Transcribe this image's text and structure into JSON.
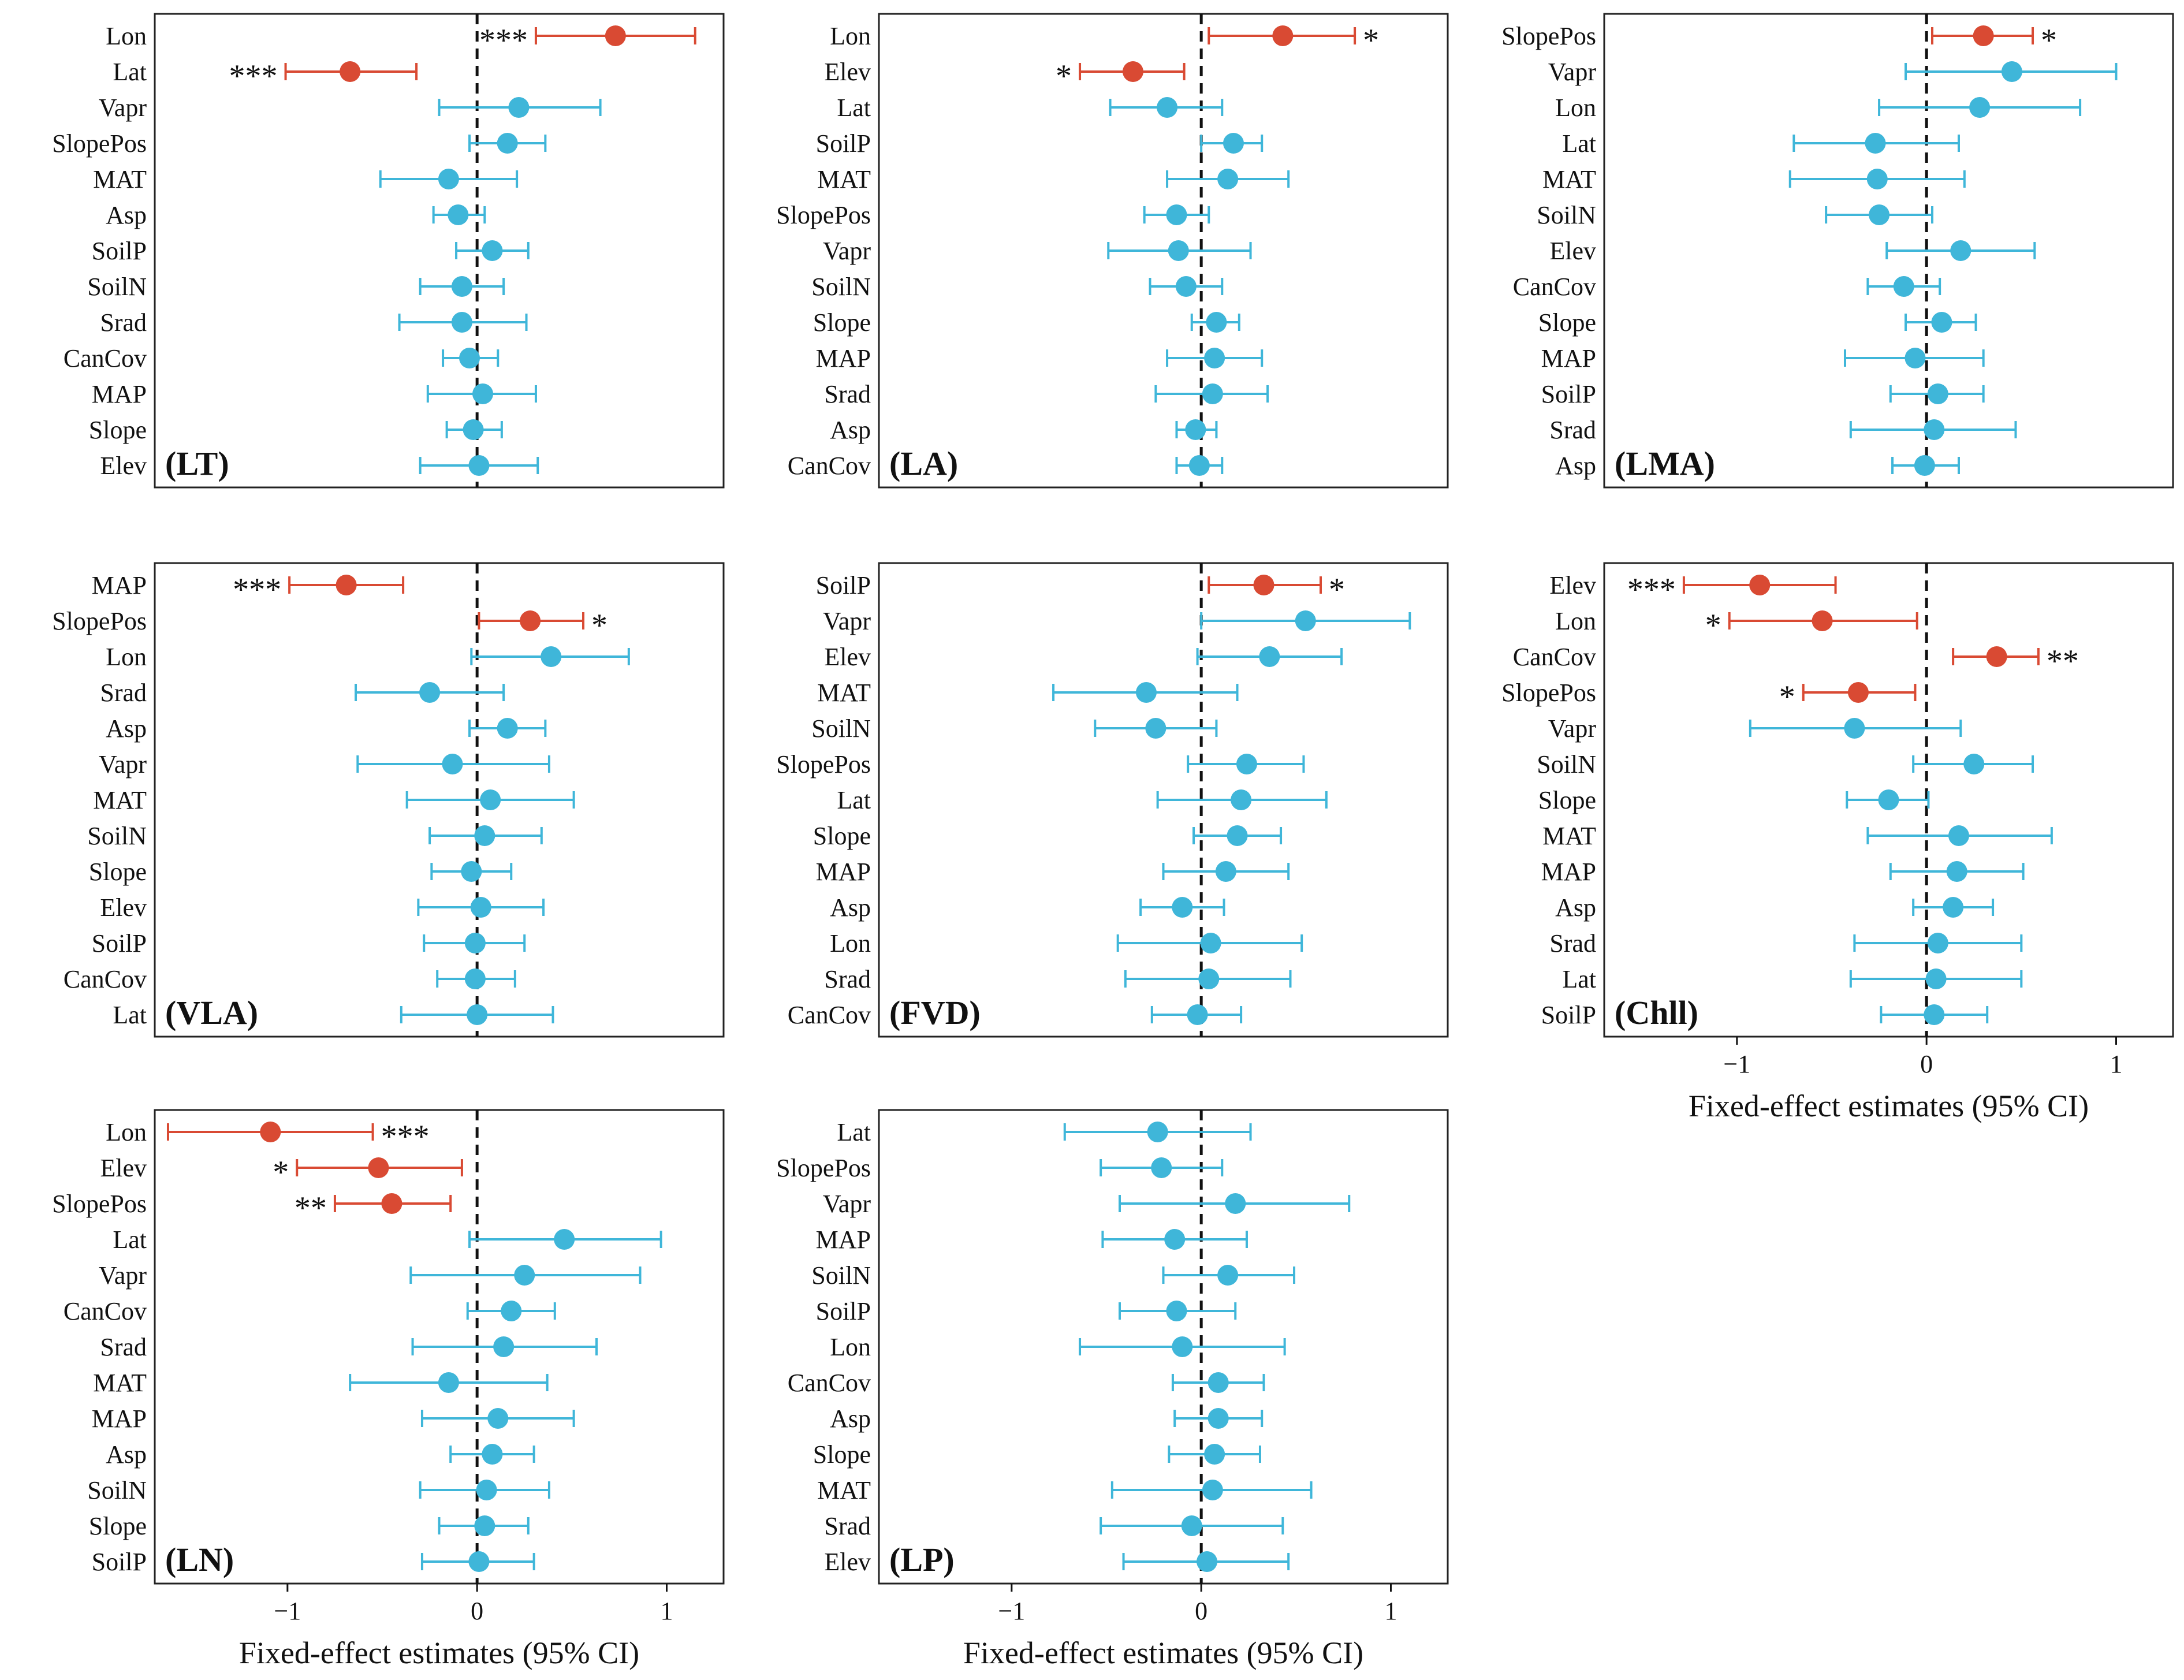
{
  "colors": {
    "significant": "#d94a33",
    "nonsignificant": "#3fb6d9",
    "frame": "#222222"
  },
  "x_axis_label": "Fixed-effect estimates (95% CI)",
  "chart_data": [
    {
      "type": "forest",
      "title": "(LT)",
      "xlim": [
        -1.7,
        1.3
      ],
      "xticks": [
        -1,
        0,
        1
      ],
      "tick_labels": [
        "−1",
        "0",
        "1"
      ],
      "show_x_axis": false,
      "rows": [
        {
          "label": "Lon",
          "est": 0.73,
          "lo": 0.31,
          "hi": 1.15,
          "sig": true,
          "stars": "***",
          "star_side": "left"
        },
        {
          "label": "Lat",
          "est": -0.67,
          "lo": -1.01,
          "hi": -0.32,
          "sig": true,
          "stars": "***",
          "star_side": "left"
        },
        {
          "label": "Vapr",
          "est": 0.22,
          "lo": -0.2,
          "hi": 0.65,
          "sig": false
        },
        {
          "label": "SlopePos",
          "est": 0.16,
          "lo": -0.04,
          "hi": 0.36,
          "sig": false
        },
        {
          "label": "MAT",
          "est": -0.15,
          "lo": -0.51,
          "hi": 0.21,
          "sig": false
        },
        {
          "label": "Asp",
          "est": -0.1,
          "lo": -0.23,
          "hi": 0.04,
          "sig": false
        },
        {
          "label": "SoilP",
          "est": 0.08,
          "lo": -0.11,
          "hi": 0.27,
          "sig": false
        },
        {
          "label": "SoilN",
          "est": -0.08,
          "lo": -0.3,
          "hi": 0.14,
          "sig": false
        },
        {
          "label": "Srad",
          "est": -0.08,
          "lo": -0.41,
          "hi": 0.26,
          "sig": false
        },
        {
          "label": "CanCov",
          "est": -0.04,
          "lo": -0.18,
          "hi": 0.11,
          "sig": false
        },
        {
          "label": "MAP",
          "est": 0.03,
          "lo": -0.26,
          "hi": 0.31,
          "sig": false
        },
        {
          "label": "Slope",
          "est": -0.02,
          "lo": -0.16,
          "hi": 0.13,
          "sig": false
        },
        {
          "label": "Elev",
          "est": 0.01,
          "lo": -0.3,
          "hi": 0.32,
          "sig": false
        }
      ]
    },
    {
      "type": "forest",
      "title": "(LA)",
      "xlim": [
        -1.7,
        1.3
      ],
      "xticks": [
        -1,
        0,
        1
      ],
      "tick_labels": [
        "−1",
        "0",
        "1"
      ],
      "show_x_axis": false,
      "rows": [
        {
          "label": "Lon",
          "est": 0.43,
          "lo": 0.04,
          "hi": 0.81,
          "sig": true,
          "stars": "*",
          "star_side": "right"
        },
        {
          "label": "Elev",
          "est": -0.36,
          "lo": -0.64,
          "hi": -0.09,
          "sig": true,
          "stars": "*",
          "star_side": "left"
        },
        {
          "label": "Lat",
          "est": -0.18,
          "lo": -0.48,
          "hi": 0.11,
          "sig": false
        },
        {
          "label": "SoilP",
          "est": 0.17,
          "lo": 0.0,
          "hi": 0.32,
          "sig": false
        },
        {
          "label": "MAT",
          "est": 0.14,
          "lo": -0.18,
          "hi": 0.46,
          "sig": false
        },
        {
          "label": "SlopePos",
          "est": -0.13,
          "lo": -0.3,
          "hi": 0.04,
          "sig": false
        },
        {
          "label": "Vapr",
          "est": -0.12,
          "lo": -0.49,
          "hi": 0.26,
          "sig": false
        },
        {
          "label": "SoilN",
          "est": -0.08,
          "lo": -0.27,
          "hi": 0.11,
          "sig": false
        },
        {
          "label": "Slope",
          "est": 0.08,
          "lo": -0.05,
          "hi": 0.2,
          "sig": false
        },
        {
          "label": "MAP",
          "est": 0.07,
          "lo": -0.18,
          "hi": 0.32,
          "sig": false
        },
        {
          "label": "Srad",
          "est": 0.06,
          "lo": -0.24,
          "hi": 0.35,
          "sig": false
        },
        {
          "label": "Asp",
          "est": -0.03,
          "lo": -0.13,
          "hi": 0.08,
          "sig": false
        },
        {
          "label": "CanCov",
          "est": -0.01,
          "lo": -0.13,
          "hi": 0.11,
          "sig": false
        }
      ]
    },
    {
      "type": "forest",
      "title": "(LMA)",
      "xlim": [
        -1.7,
        1.3
      ],
      "xticks": [
        -1,
        0,
        1
      ],
      "tick_labels": [
        "−1",
        "0",
        "1"
      ],
      "show_x_axis": false,
      "rows": [
        {
          "label": "SlopePos",
          "est": 0.3,
          "lo": 0.03,
          "hi": 0.56,
          "sig": true,
          "stars": "*",
          "star_side": "right"
        },
        {
          "label": "Vapr",
          "est": 0.45,
          "lo": -0.11,
          "hi": 1.0,
          "sig": false
        },
        {
          "label": "Lon",
          "est": 0.28,
          "lo": -0.25,
          "hi": 0.81,
          "sig": false
        },
        {
          "label": "Lat",
          "est": -0.27,
          "lo": -0.7,
          "hi": 0.17,
          "sig": false
        },
        {
          "label": "MAT",
          "est": -0.26,
          "lo": -0.72,
          "hi": 0.2,
          "sig": false
        },
        {
          "label": "SoilN",
          "est": -0.25,
          "lo": -0.53,
          "hi": 0.03,
          "sig": false
        },
        {
          "label": "Elev",
          "est": 0.18,
          "lo": -0.21,
          "hi": 0.57,
          "sig": false
        },
        {
          "label": "CanCov",
          "est": -0.12,
          "lo": -0.31,
          "hi": 0.07,
          "sig": false
        },
        {
          "label": "Slope",
          "est": 0.08,
          "lo": -0.11,
          "hi": 0.26,
          "sig": false
        },
        {
          "label": "MAP",
          "est": -0.06,
          "lo": -0.43,
          "hi": 0.3,
          "sig": false
        },
        {
          "label": "SoilP",
          "est": 0.06,
          "lo": -0.19,
          "hi": 0.3,
          "sig": false
        },
        {
          "label": "Srad",
          "est": 0.04,
          "lo": -0.4,
          "hi": 0.47,
          "sig": false
        },
        {
          "label": "Asp",
          "est": -0.01,
          "lo": -0.18,
          "hi": 0.17,
          "sig": false
        }
      ]
    },
    {
      "type": "forest",
      "title": "(VLA)",
      "xlim": [
        -1.7,
        1.3
      ],
      "xticks": [
        -1,
        0,
        1
      ],
      "tick_labels": [
        "−1",
        "0",
        "1"
      ],
      "show_x_axis": false,
      "rows": [
        {
          "label": "MAP",
          "est": -0.69,
          "lo": -0.99,
          "hi": -0.39,
          "sig": true,
          "stars": "***",
          "star_side": "left"
        },
        {
          "label": "SlopePos",
          "est": 0.28,
          "lo": 0.01,
          "hi": 0.56,
          "sig": true,
          "stars": "*",
          "star_side": "right"
        },
        {
          "label": "Lon",
          "est": 0.39,
          "lo": -0.03,
          "hi": 0.8,
          "sig": false
        },
        {
          "label": "Srad",
          "est": -0.25,
          "lo": -0.64,
          "hi": 0.14,
          "sig": false
        },
        {
          "label": "Asp",
          "est": 0.16,
          "lo": -0.04,
          "hi": 0.36,
          "sig": false
        },
        {
          "label": "Vapr",
          "est": -0.13,
          "lo": -0.63,
          "hi": 0.38,
          "sig": false
        },
        {
          "label": "MAT",
          "est": 0.07,
          "lo": -0.37,
          "hi": 0.51,
          "sig": false
        },
        {
          "label": "SoilN",
          "est": 0.04,
          "lo": -0.25,
          "hi": 0.34,
          "sig": false
        },
        {
          "label": "Slope",
          "est": -0.03,
          "lo": -0.24,
          "hi": 0.18,
          "sig": false
        },
        {
          "label": "Elev",
          "est": 0.02,
          "lo": -0.31,
          "hi": 0.35,
          "sig": false
        },
        {
          "label": "SoilP",
          "est": -0.01,
          "lo": -0.28,
          "hi": 0.25,
          "sig": false
        },
        {
          "label": "CanCov",
          "est": -0.01,
          "lo": -0.21,
          "hi": 0.2,
          "sig": false
        },
        {
          "label": "Lat",
          "est": 0.0,
          "lo": -0.4,
          "hi": 0.4,
          "sig": false
        }
      ]
    },
    {
      "type": "forest",
      "title": "(FVD)",
      "xlim": [
        -1.7,
        1.3
      ],
      "xticks": [
        -1,
        0,
        1
      ],
      "tick_labels": [
        "−1",
        "0",
        "1"
      ],
      "show_x_axis": false,
      "rows": [
        {
          "label": "SoilP",
          "est": 0.33,
          "lo": 0.04,
          "hi": 0.63,
          "sig": true,
          "stars": "*",
          "star_side": "right"
        },
        {
          "label": "Vapr",
          "est": 0.55,
          "lo": 0.0,
          "hi": 1.1,
          "sig": false
        },
        {
          "label": "Elev",
          "est": 0.36,
          "lo": -0.02,
          "hi": 0.74,
          "sig": false
        },
        {
          "label": "MAT",
          "est": -0.29,
          "lo": -0.78,
          "hi": 0.19,
          "sig": false
        },
        {
          "label": "SoilN",
          "est": -0.24,
          "lo": -0.56,
          "hi": 0.08,
          "sig": false
        },
        {
          "label": "SlopePos",
          "est": 0.24,
          "lo": -0.07,
          "hi": 0.54,
          "sig": false
        },
        {
          "label": "Lat",
          "est": 0.21,
          "lo": -0.23,
          "hi": 0.66,
          "sig": false
        },
        {
          "label": "Slope",
          "est": 0.19,
          "lo": -0.04,
          "hi": 0.42,
          "sig": false
        },
        {
          "label": "MAP",
          "est": 0.13,
          "lo": -0.2,
          "hi": 0.46,
          "sig": false
        },
        {
          "label": "Asp",
          "est": -0.1,
          "lo": -0.32,
          "hi": 0.12,
          "sig": false
        },
        {
          "label": "Lon",
          "est": 0.05,
          "lo": -0.44,
          "hi": 0.53,
          "sig": false
        },
        {
          "label": "Srad",
          "est": 0.04,
          "lo": -0.4,
          "hi": 0.47,
          "sig": false
        },
        {
          "label": "CanCov",
          "est": -0.02,
          "lo": -0.26,
          "hi": 0.21,
          "sig": false
        }
      ]
    },
    {
      "type": "forest",
      "title": "(Chll)",
      "xlim": [
        -1.7,
        1.3
      ],
      "xticks": [
        -1,
        0,
        1
      ],
      "tick_labels": [
        "−1",
        "0",
        "1"
      ],
      "show_x_axis": true,
      "rows": [
        {
          "label": "Elev",
          "est": -0.88,
          "lo": -1.28,
          "hi": -0.48,
          "sig": true,
          "stars": "***",
          "star_side": "left"
        },
        {
          "label": "Lon",
          "est": -0.55,
          "lo": -1.04,
          "hi": -0.05,
          "sig": true,
          "stars": "*",
          "star_side": "left"
        },
        {
          "label": "CanCov",
          "est": 0.37,
          "lo": 0.14,
          "hi": 0.59,
          "sig": true,
          "stars": "**",
          "star_side": "right"
        },
        {
          "label": "SlopePos",
          "est": -0.36,
          "lo": -0.65,
          "hi": -0.06,
          "sig": true,
          "stars": "*",
          "star_side": "left"
        },
        {
          "label": "Vapr",
          "est": -0.38,
          "lo": -0.93,
          "hi": 0.18,
          "sig": false
        },
        {
          "label": "SoilN",
          "est": 0.25,
          "lo": -0.07,
          "hi": 0.56,
          "sig": false
        },
        {
          "label": "Slope",
          "est": -0.2,
          "lo": -0.42,
          "hi": 0.01,
          "sig": false
        },
        {
          "label": "MAT",
          "est": 0.17,
          "lo": -0.31,
          "hi": 0.66,
          "sig": false
        },
        {
          "label": "MAP",
          "est": 0.16,
          "lo": -0.19,
          "hi": 0.51,
          "sig": false
        },
        {
          "label": "Asp",
          "est": 0.14,
          "lo": -0.07,
          "hi": 0.35,
          "sig": false
        },
        {
          "label": "Srad",
          "est": 0.06,
          "lo": -0.38,
          "hi": 0.5,
          "sig": false
        },
        {
          "label": "Lat",
          "est": 0.05,
          "lo": -0.4,
          "hi": 0.5,
          "sig": false
        },
        {
          "label": "SoilP",
          "est": 0.04,
          "lo": -0.24,
          "hi": 0.32,
          "sig": false
        }
      ]
    },
    {
      "type": "forest",
      "title": "(LN)",
      "xlim": [
        -1.7,
        1.3
      ],
      "xticks": [
        -1,
        0,
        1
      ],
      "tick_labels": [
        "−1",
        "0",
        "1"
      ],
      "show_x_axis": true,
      "rows": [
        {
          "label": "Lon",
          "est": -1.09,
          "lo": -1.63,
          "hi": -0.55,
          "sig": true,
          "stars": "***",
          "star_side": "right"
        },
        {
          "label": "Elev",
          "est": -0.52,
          "lo": -0.95,
          "hi": -0.08,
          "sig": true,
          "stars": "*",
          "star_side": "left"
        },
        {
          "label": "SlopePos",
          "est": -0.45,
          "lo": -0.75,
          "hi": -0.14,
          "sig": true,
          "stars": "**",
          "star_side": "left"
        },
        {
          "label": "Lat",
          "est": 0.46,
          "lo": -0.04,
          "hi": 0.97,
          "sig": false
        },
        {
          "label": "Vapr",
          "est": 0.25,
          "lo": -0.35,
          "hi": 0.86,
          "sig": false
        },
        {
          "label": "CanCov",
          "est": 0.18,
          "lo": -0.05,
          "hi": 0.41,
          "sig": false
        },
        {
          "label": "Srad",
          "est": 0.14,
          "lo": -0.34,
          "hi": 0.63,
          "sig": false
        },
        {
          "label": "MAT",
          "est": -0.15,
          "lo": -0.67,
          "hi": 0.37,
          "sig": false
        },
        {
          "label": "MAP",
          "est": 0.11,
          "lo": -0.29,
          "hi": 0.51,
          "sig": false
        },
        {
          "label": "Asp",
          "est": 0.08,
          "lo": -0.14,
          "hi": 0.3,
          "sig": false
        },
        {
          "label": "SoilN",
          "est": 0.05,
          "lo": -0.3,
          "hi": 0.38,
          "sig": false
        },
        {
          "label": "Slope",
          "est": 0.04,
          "lo": -0.2,
          "hi": 0.27,
          "sig": false
        },
        {
          "label": "SoilP",
          "est": 0.01,
          "lo": -0.29,
          "hi": 0.3,
          "sig": false
        }
      ]
    },
    {
      "type": "forest",
      "title": "(LP)",
      "xlim": [
        -1.7,
        1.3
      ],
      "xticks": [
        -1,
        0,
        1
      ],
      "tick_labels": [
        "−1",
        "0",
        "1"
      ],
      "show_x_axis": true,
      "rows": [
        {
          "label": "Lat",
          "est": -0.23,
          "lo": -0.72,
          "hi": 0.26,
          "sig": false
        },
        {
          "label": "SlopePos",
          "est": -0.21,
          "lo": -0.53,
          "hi": 0.11,
          "sig": false
        },
        {
          "label": "Vapr",
          "est": 0.18,
          "lo": -0.43,
          "hi": 0.78,
          "sig": false
        },
        {
          "label": "MAP",
          "est": -0.14,
          "lo": -0.52,
          "hi": 0.24,
          "sig": false
        },
        {
          "label": "SoilN",
          "est": 0.14,
          "lo": -0.2,
          "hi": 0.49,
          "sig": false
        },
        {
          "label": "SoilP",
          "est": -0.13,
          "lo": -0.43,
          "hi": 0.18,
          "sig": false
        },
        {
          "label": "Lon",
          "est": -0.1,
          "lo": -0.64,
          "hi": 0.44,
          "sig": false
        },
        {
          "label": "CanCov",
          "est": 0.09,
          "lo": -0.15,
          "hi": 0.33,
          "sig": false
        },
        {
          "label": "Asp",
          "est": 0.09,
          "lo": -0.14,
          "hi": 0.32,
          "sig": false
        },
        {
          "label": "Slope",
          "est": 0.07,
          "lo": -0.17,
          "hi": 0.31,
          "sig": false
        },
        {
          "label": "MAT",
          "est": 0.06,
          "lo": -0.47,
          "hi": 0.58,
          "sig": false
        },
        {
          "label": "Srad",
          "est": -0.05,
          "lo": -0.53,
          "hi": 0.43,
          "sig": false
        },
        {
          "label": "Elev",
          "est": 0.03,
          "lo": -0.41,
          "hi": 0.46,
          "sig": false
        }
      ]
    }
  ]
}
